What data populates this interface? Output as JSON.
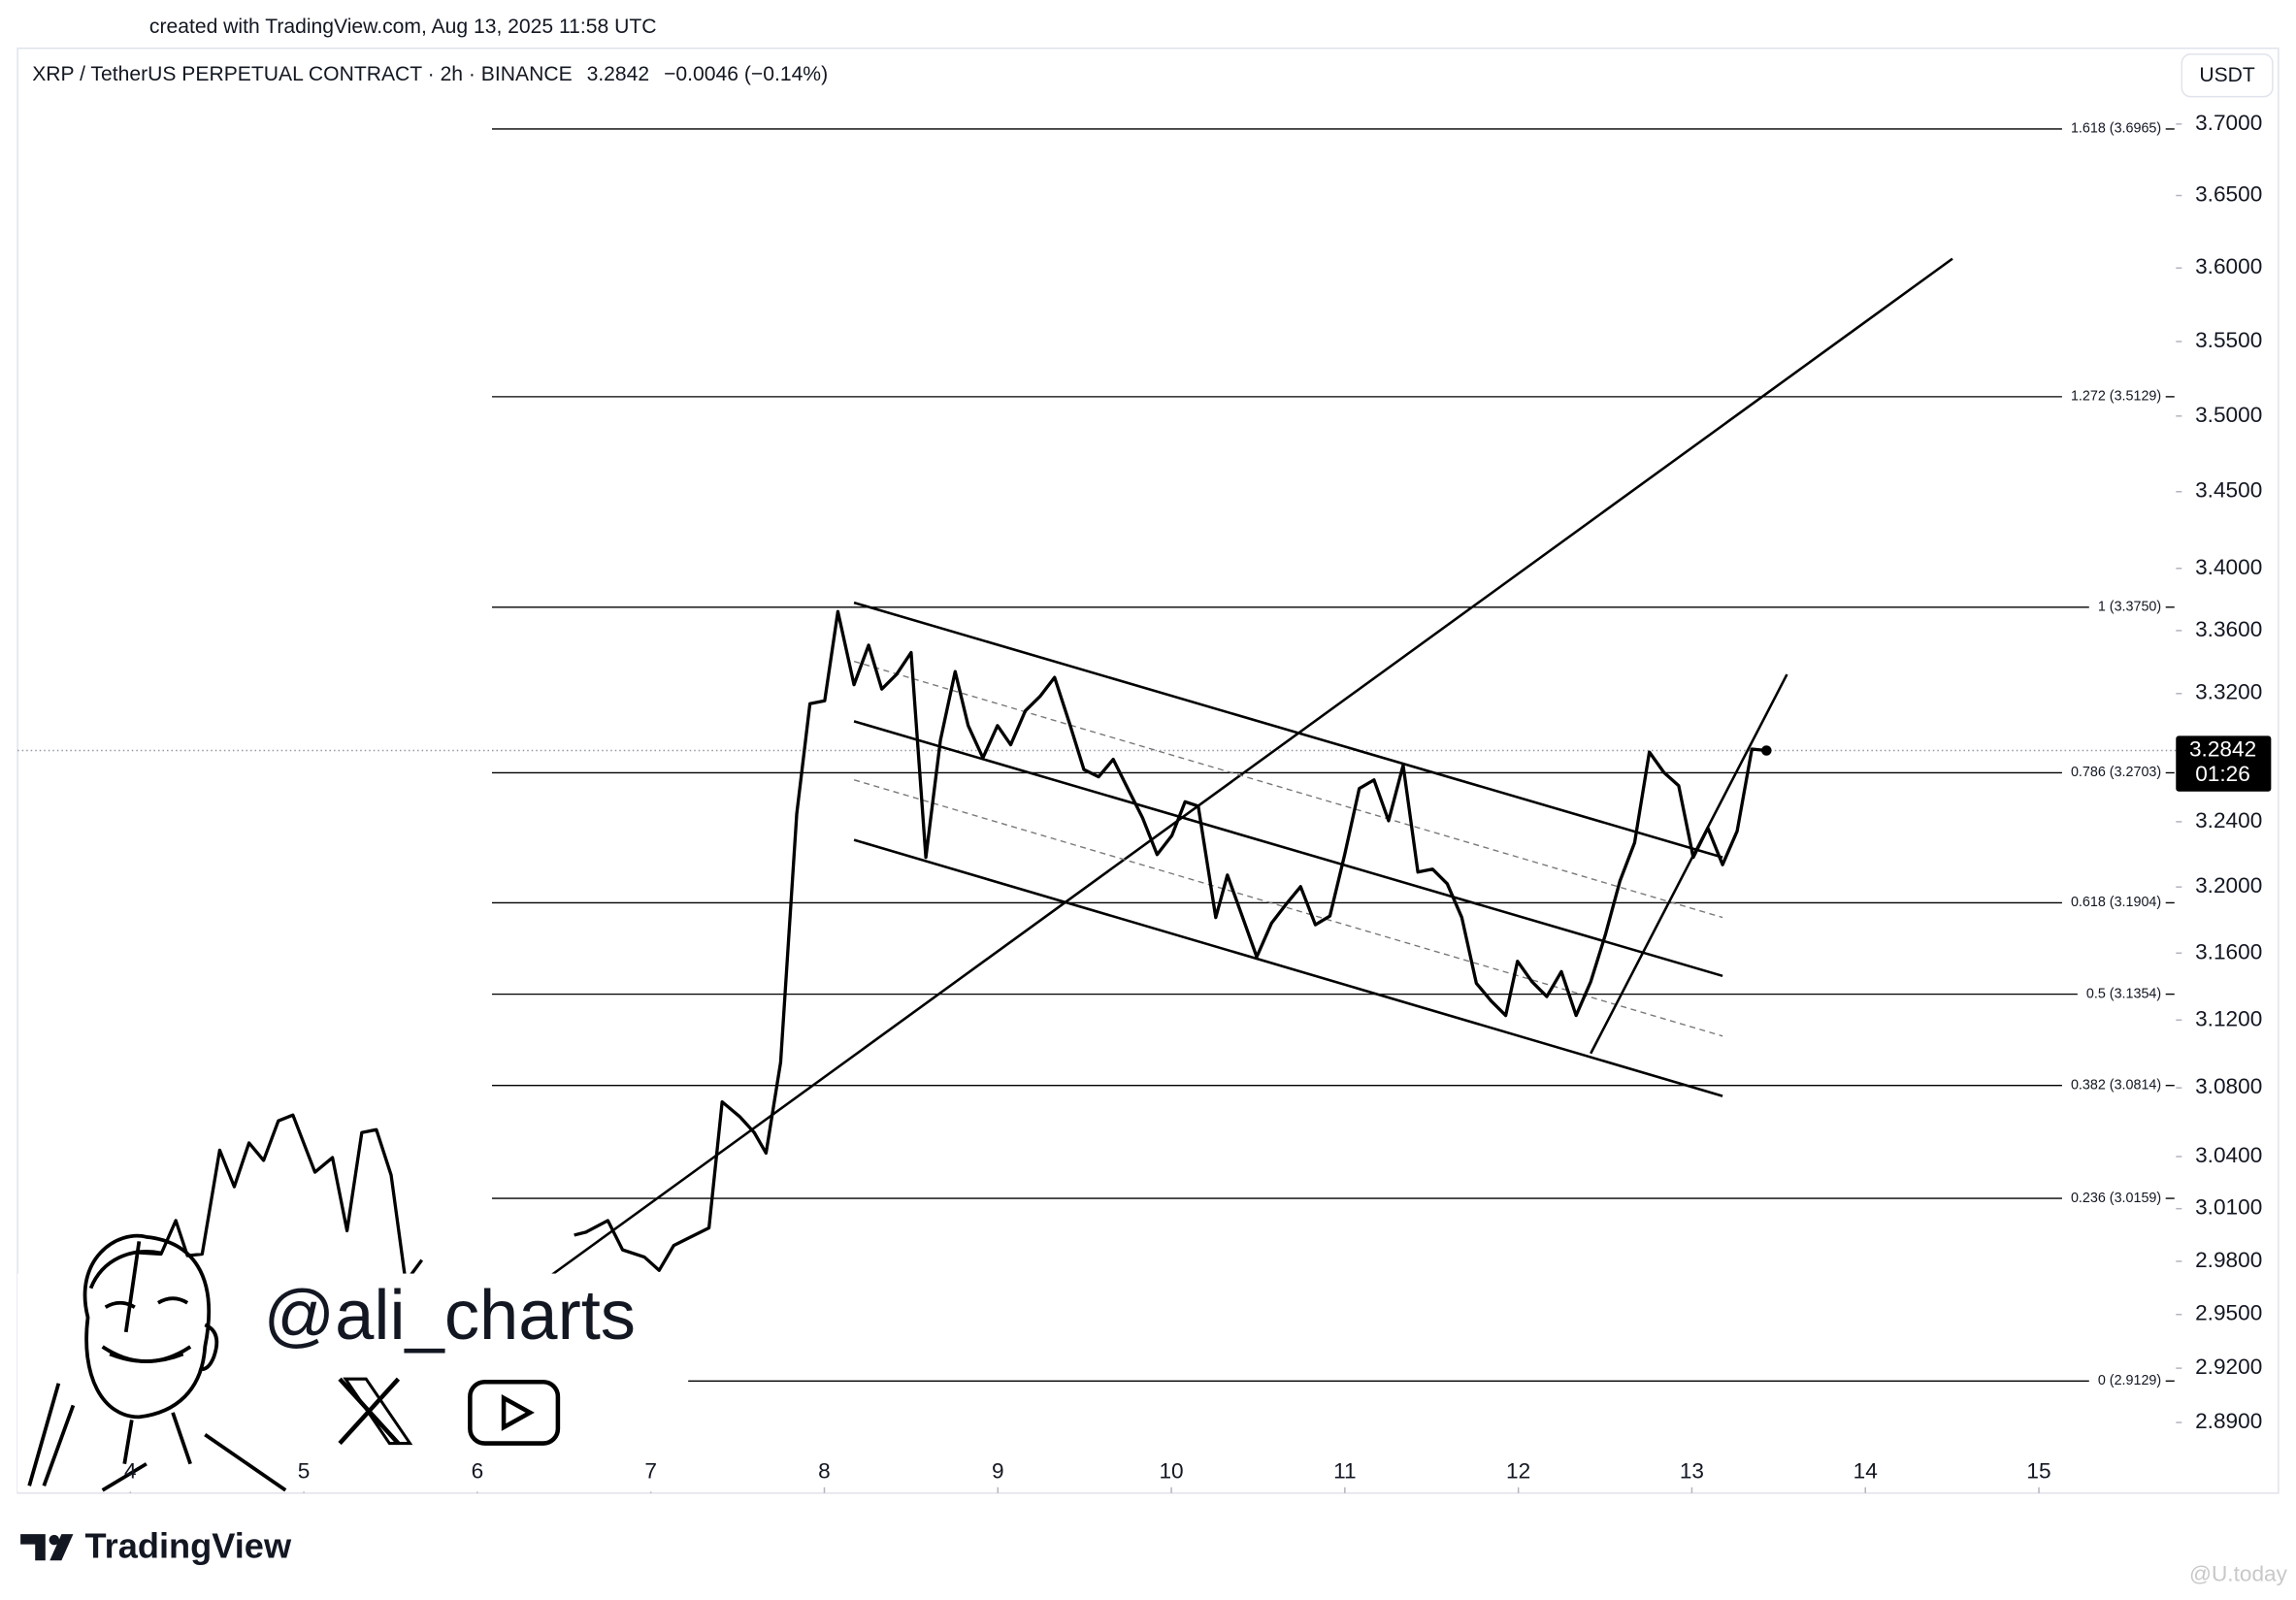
{
  "created_note": "created with TradingView.com, Aug 13, 2025 11:58 UTC",
  "chart_data": {
    "type": "line",
    "symbol": "XRP / TetherUS PERPETUAL CONTRACT · 2h · BINANCE",
    "last_price": 3.2842,
    "change": "−0.0046 (−0.14%)",
    "currency": "USDT",
    "countdown": "01:26",
    "log_scale": true,
    "color": "#000000",
    "xlim": [
      3.35,
      15.79
    ],
    "xticks": [
      4,
      5,
      6,
      7,
      8,
      9,
      10,
      11,
      12,
      13,
      14,
      15
    ],
    "ylim": [
      2.8514,
      3.7537
    ],
    "yticks": [
      {
        "value": 3.7,
        "label": "3.7000"
      },
      {
        "value": 3.65,
        "label": "3.6500"
      },
      {
        "value": 3.6,
        "label": "3.6000"
      },
      {
        "value": 3.55,
        "label": "3.5500"
      },
      {
        "value": 3.5,
        "label": "3.5000"
      },
      {
        "value": 3.45,
        "label": "3.4500"
      },
      {
        "value": 3.4,
        "label": "3.4000"
      },
      {
        "value": 3.36,
        "label": "3.3600"
      },
      {
        "value": 3.32,
        "label": "3.3200"
      },
      {
        "value": 3.24,
        "label": "3.2400"
      },
      {
        "value": 3.2,
        "label": "3.2000"
      },
      {
        "value": 3.16,
        "label": "3.1600"
      },
      {
        "value": 3.12,
        "label": "3.1200"
      },
      {
        "value": 3.08,
        "label": "3.0800"
      },
      {
        "value": 3.04,
        "label": "3.0400"
      },
      {
        "value": 3.01,
        "label": "3.0100"
      },
      {
        "value": 2.98,
        "label": "2.9800"
      },
      {
        "value": 2.95,
        "label": "2.9500"
      },
      {
        "value": 2.92,
        "label": "2.9200"
      },
      {
        "value": 2.89,
        "label": "2.8900"
      }
    ],
    "x": [
      4.051,
      4.177,
      4.262,
      4.329,
      4.414,
      4.515,
      4.599,
      4.684,
      4.768,
      4.853,
      4.937,
      5.064,
      5.165,
      5.249,
      5.334,
      5.418,
      5.503,
      5.587,
      5.68,
      null,
      6.558,
      6.626,
      6.752,
      6.837,
      6.963,
      7.048,
      7.132,
      7.217,
      7.335,
      7.411,
      7.512,
      7.596,
      7.664,
      7.748,
      7.841,
      7.917,
      8.002,
      8.078,
      8.171,
      8.255,
      8.331,
      8.416,
      8.5,
      8.585,
      8.669,
      8.754,
      8.829,
      8.914,
      8.998,
      9.074,
      9.158,
      9.243,
      9.327,
      9.412,
      9.496,
      9.581,
      9.665,
      9.749,
      9.834,
      9.918,
      10.003,
      10.079,
      10.155,
      10.256,
      10.323,
      10.408,
      10.492,
      10.577,
      10.661,
      10.745,
      10.83,
      10.914,
      10.999,
      11.083,
      11.168,
      11.252,
      11.336,
      11.421,
      11.505,
      11.59,
      11.674,
      11.758,
      11.843,
      11.927,
      11.995,
      12.079,
      12.164,
      12.248,
      12.333,
      12.417,
      12.501,
      12.586,
      12.67,
      12.755,
      12.839,
      12.924,
      13.008,
      13.092,
      13.177,
      13.261,
      13.346,
      13.43
    ],
    "values": [
      2.9849,
      2.9841,
      3.0032,
      2.9832,
      2.9841,
      3.0437,
      3.0226,
      3.0479,
      3.0378,
      3.0607,
      3.0641,
      3.031,
      3.0394,
      2.9974,
      3.0539,
      3.0556,
      3.0293,
      2.9683,
      2.9807,
      null,
      2.9949,
      2.9966,
      3.0032,
      2.9865,
      2.9824,
      2.9749,
      2.989,
      2.9932,
      2.999,
      3.0718,
      3.0632,
      3.0539,
      3.042,
      3.095,
      3.245,
      3.3136,
      3.3154,
      3.3722,
      3.3256,
      3.3507,
      3.3228,
      3.3321,
      3.346,
      3.2181,
      3.2906,
      3.3339,
      3.2998,
      3.2796,
      3.2998,
      3.2878,
      3.309,
      3.3182,
      3.3302,
      3.3016,
      3.2723,
      3.2678,
      3.2787,
      3.2605,
      3.2424,
      3.2198,
      3.2315,
      3.2523,
      3.2496,
      3.1815,
      3.2073,
      3.1824,
      3.1577,
      3.178,
      3.1895,
      3.2002,
      3.1771,
      3.1824,
      3.2198,
      3.2605,
      3.2659,
      3.2406,
      3.275,
      3.2091,
      3.2109,
      3.202,
      3.1815,
      3.1419,
      3.1314,
      3.1227,
      3.1551,
      3.1428,
      3.134,
      3.1489,
      3.1227,
      3.1428,
      3.1709,
      3.2038,
      3.2271,
      3.2832,
      3.2705,
      3.2623,
      3.2181,
      3.2361,
      3.2136,
      3.2342,
      3.2851,
      3.2842
    ],
    "fib_levels": [
      {
        "value": 3.6965,
        "label": "1.618 (3.6965)"
      },
      {
        "value": 3.5129,
        "label": "1.272 (3.5129)"
      },
      {
        "value": 3.375,
        "label": "1 (3.3750)"
      },
      {
        "value": 3.2703,
        "label": "0.786 (3.2703)"
      },
      {
        "value": 3.1904,
        "label": "0.618 (3.1904)"
      },
      {
        "value": 3.1354,
        "label": "0.5 (3.1354)"
      },
      {
        "value": 3.0814,
        "label": "0.382 (3.0814)"
      },
      {
        "value": 3.0159,
        "label": "0.236 (3.0159)"
      },
      {
        "value": 2.9129,
        "label": "0 (2.9129)"
      }
    ],
    "trend_lines": [
      {
        "x": [
          6.372,
          14.502
        ],
        "y": [
          2.9683,
          3.6064
        ],
        "dashed": false
      },
      {
        "x": [
          8.171,
          13.177
        ],
        "y": [
          3.3779,
          3.2181
        ],
        "dashed": false
      },
      {
        "x": [
          8.171,
          13.177
        ],
        "y": [
          3.3025,
          3.1463
        ],
        "dashed": false
      },
      {
        "x": [
          8.171,
          13.177
        ],
        "y": [
          3.2288,
          3.0752
        ],
        "dashed": false
      },
      {
        "x": [
          8.171,
          13.177
        ],
        "y": [
          3.3404,
          3.1815
        ],
        "dashed": true
      },
      {
        "x": [
          8.171,
          13.177
        ],
        "y": [
          3.2659,
          3.1105
        ],
        "dashed": true
      },
      {
        "x": [
          12.417,
          13.548
        ],
        "y": [
          3.1002,
          3.3321
        ],
        "dashed": false
      }
    ]
  },
  "watermark": {
    "handle": "@ali_charts"
  },
  "footer": {
    "brand": "TradingView",
    "source": "@U.today"
  }
}
